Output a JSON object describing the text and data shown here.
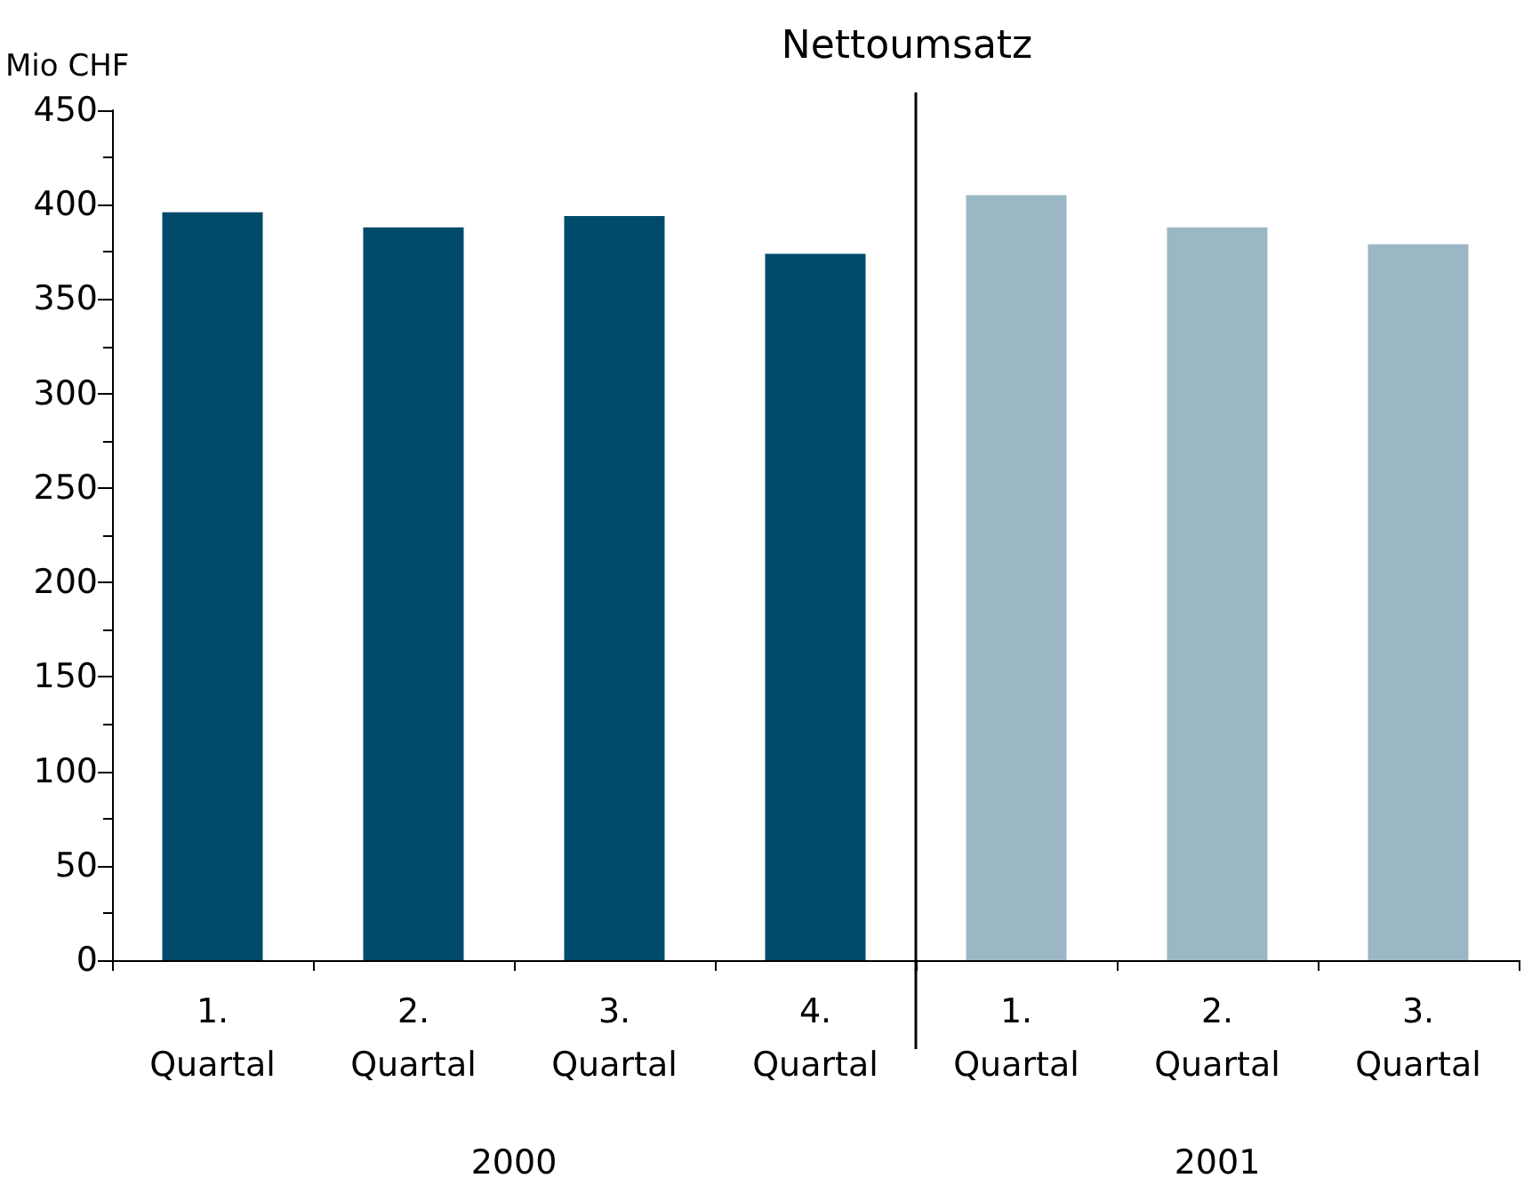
{
  "chart_data": {
    "type": "bar",
    "title": "Nettoumsatz",
    "ylabel": "Mio CHF",
    "categories": [
      "1. Quartal",
      "2. Quartal",
      "3. Quartal",
      "4. Quartal",
      "1. Quartal",
      "2. Quartal",
      "3. Quartal"
    ],
    "series": [
      {
        "color": "#004b6b",
        "values": [
          396,
          388,
          394,
          374,
          null,
          null,
          null
        ]
      },
      {
        "color": "#9bb7c5",
        "values": [
          null,
          null,
          null,
          null,
          405,
          388,
          379
        ]
      }
    ],
    "annotations": [
      "2000",
      "2001"
    ],
    "ylim": [
      0,
      450
    ],
    "yticks": [
      0,
      50,
      100,
      150,
      200,
      250,
      300,
      350,
      400,
      450
    ],
    "grid": false
  }
}
